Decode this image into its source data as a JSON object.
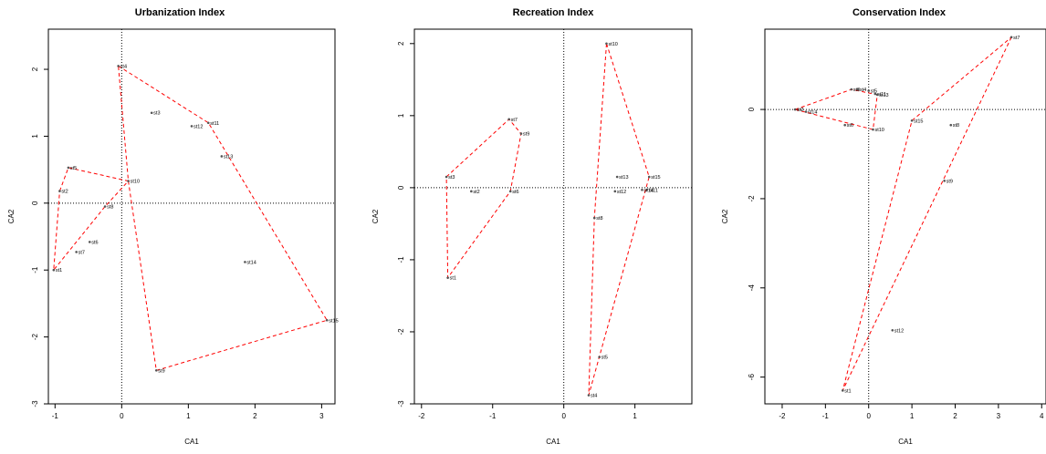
{
  "chart_data": [
    {
      "type": "scatter",
      "title": "Urbanization Index",
      "xlabel": "CA1",
      "ylabel": "CA2",
      "xlim": [
        -1.1,
        3.2
      ],
      "ylim": [
        -3.0,
        2.6
      ],
      "xticks": [
        -1,
        0,
        1,
        2,
        3
      ],
      "yticks": [
        -3,
        -2,
        -1,
        0,
        1,
        2
      ],
      "points": [
        {
          "label": "st1",
          "x": -1.02,
          "y": -1.0
        },
        {
          "label": "st2",
          "x": -0.93,
          "y": 0.18
        },
        {
          "label": "st3",
          "x": 0.45,
          "y": 1.35
        },
        {
          "label": "st4",
          "x": -0.05,
          "y": 2.05
        },
        {
          "label": "st5",
          "x": -0.8,
          "y": 0.53
        },
        {
          "label": "st6",
          "x": -0.48,
          "y": -0.58
        },
        {
          "label": "st7",
          "x": -0.68,
          "y": -0.73
        },
        {
          "label": "st8",
          "x": -0.25,
          "y": -0.05
        },
        {
          "label": "st9",
          "x": 0.52,
          "y": -2.5
        },
        {
          "label": "st10",
          "x": 0.1,
          "y": 0.33
        },
        {
          "label": "st11",
          "x": 1.3,
          "y": 1.2
        },
        {
          "label": "st12",
          "x": 1.05,
          "y": 1.15
        },
        {
          "label": "st13",
          "x": 1.5,
          "y": 0.7
        },
        {
          "label": "st14",
          "x": 1.85,
          "y": -0.88
        },
        {
          "label": "st15",
          "x": 3.08,
          "y": -1.75
        }
      ],
      "hulls": [
        [
          "st4",
          "st11",
          "st15",
          "st9",
          "st10"
        ],
        [
          "st2",
          "st5",
          "st10",
          "st8",
          "st1"
        ]
      ]
    },
    {
      "type": "scatter",
      "title": "Recreation Index",
      "xlabel": "CA1",
      "ylabel": "CA2",
      "xlim": [
        -2.1,
        1.8
      ],
      "ylim": [
        -3.0,
        2.2
      ],
      "xticks": [
        -2,
        -1,
        0,
        1
      ],
      "yticks": [
        -3,
        -2,
        -1,
        0,
        1,
        2
      ],
      "points": [
        {
          "label": "st1",
          "x": -1.63,
          "y": -1.25
        },
        {
          "label": "st2",
          "x": -1.3,
          "y": -0.05
        },
        {
          "label": "st3",
          "x": -1.65,
          "y": 0.15
        },
        {
          "label": "st4",
          "x": 0.35,
          "y": -2.88
        },
        {
          "label": "st5",
          "x": 0.5,
          "y": -2.35
        },
        {
          "label": "st6",
          "x": -0.75,
          "y": -0.05
        },
        {
          "label": "st7",
          "x": -0.77,
          "y": 0.95
        },
        {
          "label": "st8",
          "x": 0.43,
          "y": -0.42
        },
        {
          "label": "st9",
          "x": -0.6,
          "y": 0.75
        },
        {
          "label": "st10",
          "x": 0.6,
          "y": 2.0
        },
        {
          "label": "st11",
          "x": 1.17,
          "y": -0.03
        },
        {
          "label": "st12",
          "x": 0.72,
          "y": -0.05
        },
        {
          "label": "st13",
          "x": 0.75,
          "y": 0.15
        },
        {
          "label": "st14",
          "x": 1.1,
          "y": -0.03
        },
        {
          "label": "st15",
          "x": 1.2,
          "y": 0.15
        }
      ],
      "hulls": [
        [
          "st3",
          "st7",
          "st9",
          "st6",
          "st1"
        ],
        [
          "st10",
          "st15",
          "st4",
          "st8"
        ]
      ]
    },
    {
      "type": "scatter",
      "title": "Conservation Index",
      "xlabel": "CA1",
      "ylabel": "CA2",
      "xlim": [
        -2.4,
        4.1
      ],
      "ylim": [
        -6.6,
        1.8
      ],
      "xticks": [
        -2,
        -1,
        0,
        1,
        2,
        3,
        4
      ],
      "yticks": [
        -6,
        -4,
        -2,
        0
      ],
      "points": [
        {
          "label": "st1",
          "x": -0.6,
          "y": -6.3
        },
        {
          "label": "st2",
          "x": -1.7,
          "y": 0.0
        },
        {
          "label": "st3",
          "x": -0.4,
          "y": 0.45
        },
        {
          "label": "st4",
          "x": -0.25,
          "y": 0.45
        },
        {
          "label": "st5",
          "x": 0.0,
          "y": 0.42
        },
        {
          "label": "st6",
          "x": -0.55,
          "y": -0.35
        },
        {
          "label": "st7",
          "x": 3.3,
          "y": 1.62
        },
        {
          "label": "st8",
          "x": 1.9,
          "y": -0.35
        },
        {
          "label": "st9",
          "x": 1.75,
          "y": -1.6
        },
        {
          "label": "st10",
          "x": 0.1,
          "y": -0.45
        },
        {
          "label": "st11",
          "x": 0.15,
          "y": 0.35
        },
        {
          "label": "st12",
          "x": 0.55,
          "y": -4.95
        },
        {
          "label": "st13",
          "x": 0.2,
          "y": 0.33
        },
        {
          "label": "st14",
          "x": -1.45,
          "y": -0.05
        },
        {
          "label": "st15",
          "x": 1.0,
          "y": -0.25
        }
      ],
      "hulls": [
        [
          "st2",
          "st3",
          "st13",
          "st10"
        ],
        [
          "st7",
          "st1",
          "st15"
        ]
      ]
    }
  ]
}
